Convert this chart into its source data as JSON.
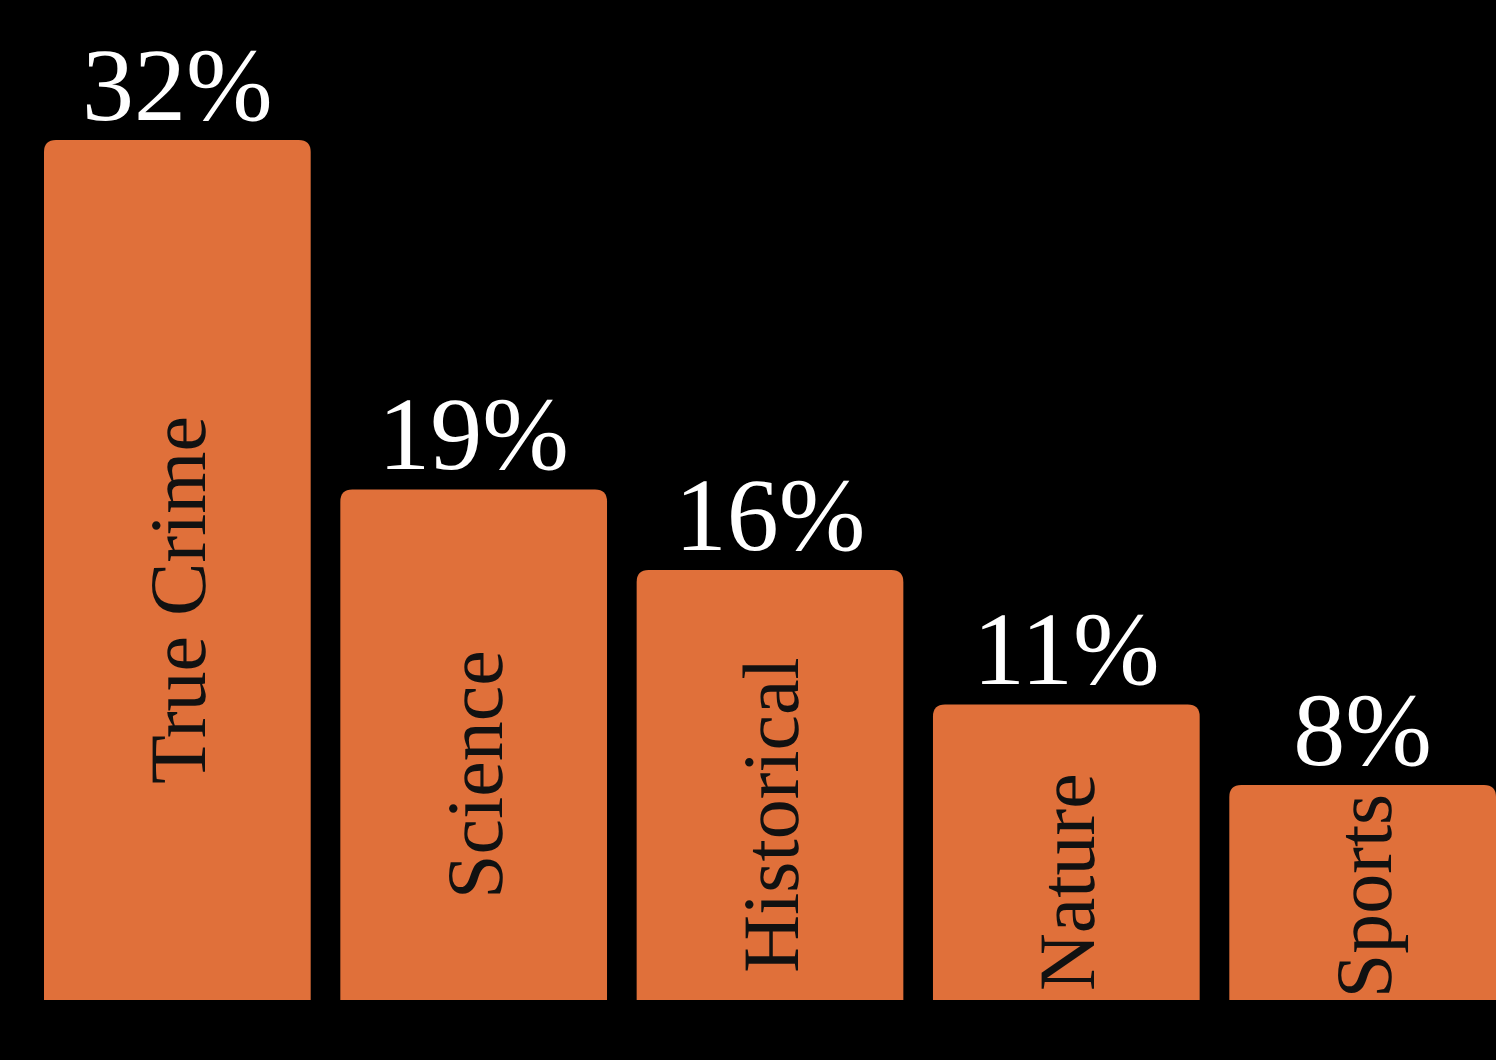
{
  "chart_data": {
    "type": "bar",
    "categories": [
      "True Crime",
      "Science",
      "Historical",
      "Nature",
      "Sports"
    ],
    "values": [
      32,
      19,
      16,
      11,
      8
    ],
    "value_labels": [
      "32%",
      "19%",
      "16%",
      "11%",
      "8%"
    ],
    "color": "#e0703a"
  }
}
